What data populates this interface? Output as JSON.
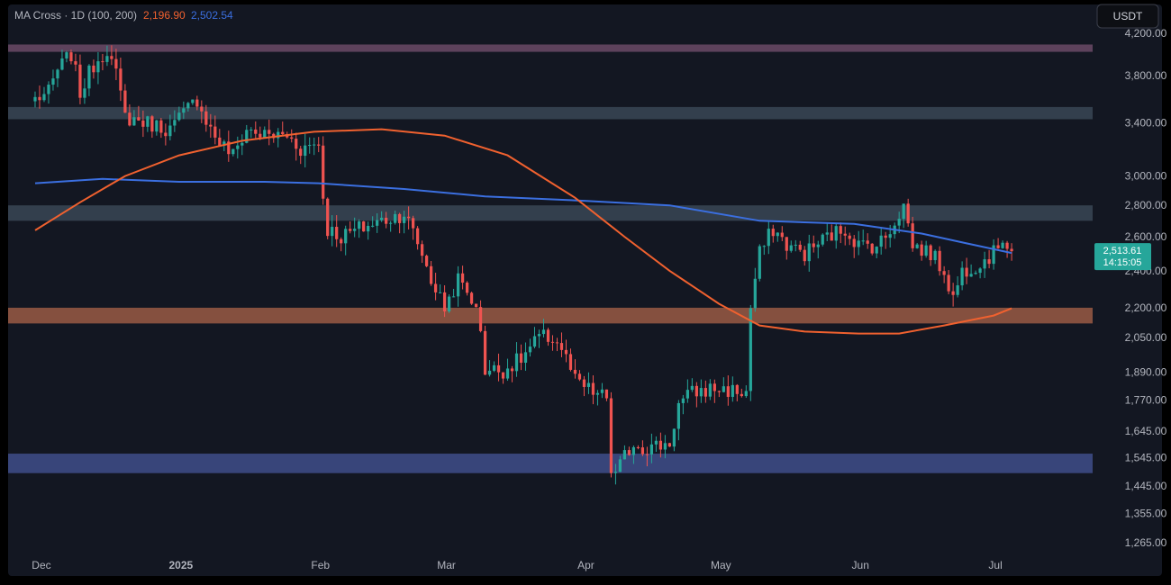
{
  "header": {
    "indicator_label": "MA Cross · 1D (100, 200)",
    "ma100_value": "2,196.90",
    "ma200_value": "2,502.54"
  },
  "currency_button": "USDT",
  "colors": {
    "background": "#131722",
    "frame": "#000000",
    "up": "#26a69a",
    "down": "#ef5350",
    "ma100": "#f0612f",
    "ma200": "#3b6fe0",
    "text": "#b2b5be"
  },
  "chart_data": {
    "type": "candlestick",
    "title": "",
    "xlabel": "",
    "ylabel": "",
    "y_scale": "log",
    "ylim": [
      1220,
      4400
    ],
    "y_ticks": [
      "4,200.00",
      "3,800.00",
      "3,400.00",
      "3,000.00",
      "2,800.00",
      "2,600.00",
      "2,400.00",
      "2,200.00",
      "2,050.00",
      "1,890.00",
      "1,770.00",
      "1,645.00",
      "1,545.00",
      "1,445.00",
      "1,355.00",
      "1,265.00"
    ],
    "x_ticks": [
      {
        "date": "2024-12-01",
        "label": "Dec"
      },
      {
        "date": "2025-01-01",
        "label": "2025"
      },
      {
        "date": "2025-02-01",
        "label": "Feb"
      },
      {
        "date": "2025-03-01",
        "label": "Mar"
      },
      {
        "date": "2025-04-01",
        "label": "Apr"
      },
      {
        "date": "2025-05-01",
        "label": "May"
      },
      {
        "date": "2025-06-01",
        "label": "Jun"
      },
      {
        "date": "2025-07-01",
        "label": "Jul"
      }
    ],
    "last_price": {
      "value": 2513.61,
      "label": "2,513.61",
      "countdown": "14:15:05"
    },
    "zones": [
      {
        "y1": 4020,
        "y2": 4090,
        "color": "#6b4a66"
      },
      {
        "y1": 3430,
        "y2": 3530,
        "color": "#3a4755"
      },
      {
        "y1": 2700,
        "y2": 2800,
        "color": "#3a4755"
      },
      {
        "y1": 2120,
        "y2": 2200,
        "color": "#9a5b44"
      },
      {
        "y1": 1490,
        "y2": 1560,
        "color": "#3f4d8a"
      }
    ],
    "anchors": [
      [
        "2024-11-30",
        3600
      ],
      [
        "2024-12-03",
        3650
      ],
      [
        "2024-12-05",
        3850
      ],
      [
        "2024-12-08",
        4000
      ],
      [
        "2024-12-10",
        3650
      ],
      [
        "2024-12-13",
        3900
      ],
      [
        "2024-12-16",
        4050
      ],
      [
        "2024-12-18",
        3800
      ],
      [
        "2024-12-20",
        3450
      ],
      [
        "2024-12-25",
        3400
      ],
      [
        "2024-12-30",
        3350
      ],
      [
        "2025-01-05",
        3600
      ],
      [
        "2025-01-08",
        3350
      ],
      [
        "2025-01-10",
        3250
      ],
      [
        "2025-01-13",
        3150
      ],
      [
        "2025-01-16",
        3350
      ],
      [
        "2025-01-20",
        3300
      ],
      [
        "2025-01-25",
        3300
      ],
      [
        "2025-01-28",
        3200
      ],
      [
        "2025-02-01",
        3250
      ],
      [
        "2025-02-02",
        2850
      ],
      [
        "2025-02-03",
        2650
      ],
      [
        "2025-02-06",
        2600
      ],
      [
        "2025-02-10",
        2650
      ],
      [
        "2025-02-15",
        2700
      ],
      [
        "2025-02-20",
        2750
      ],
      [
        "2025-02-24",
        2500
      ],
      [
        "2025-02-26",
        2350
      ],
      [
        "2025-03-01",
        2200
      ],
      [
        "2025-03-04",
        2350
      ],
      [
        "2025-03-07",
        2250
      ],
      [
        "2025-03-09",
        2100
      ],
      [
        "2025-03-10",
        1900
      ],
      [
        "2025-03-14",
        1900
      ],
      [
        "2025-03-18",
        1950
      ],
      [
        "2025-03-22",
        2050
      ],
      [
        "2025-03-25",
        2050
      ],
      [
        "2025-03-27",
        2000
      ],
      [
        "2025-03-30",
        1850
      ],
      [
        "2025-04-03",
        1800
      ],
      [
        "2025-04-06",
        1780
      ],
      [
        "2025-04-07",
        1500
      ],
      [
        "2025-04-08",
        1480
      ],
      [
        "2025-04-10",
        1550
      ],
      [
        "2025-04-12",
        1600
      ],
      [
        "2025-04-15",
        1580
      ],
      [
        "2025-04-20",
        1600
      ],
      [
        "2025-04-22",
        1750
      ],
      [
        "2025-04-25",
        1800
      ],
      [
        "2025-04-30",
        1820
      ],
      [
        "2025-05-07",
        1800
      ],
      [
        "2025-05-08",
        2200
      ],
      [
        "2025-05-10",
        2500
      ],
      [
        "2025-05-13",
        2650
      ],
      [
        "2025-05-16",
        2550
      ],
      [
        "2025-05-20",
        2500
      ],
      [
        "2025-05-25",
        2600
      ],
      [
        "2025-05-29",
        2650
      ],
      [
        "2025-06-01",
        2550
      ],
      [
        "2025-06-05",
        2550
      ],
      [
        "2025-06-07",
        2600
      ],
      [
        "2025-06-10",
        2750
      ],
      [
        "2025-06-11",
        2800
      ],
      [
        "2025-06-13",
        2550
      ],
      [
        "2025-06-17",
        2500
      ],
      [
        "2025-06-20",
        2400
      ],
      [
        "2025-06-22",
        2250
      ],
      [
        "2025-06-24",
        2400
      ],
      [
        "2025-06-28",
        2450
      ],
      [
        "2025-07-01",
        2500
      ],
      [
        "2025-07-03",
        2600
      ],
      [
        "2025-07-05",
        2513.61
      ]
    ],
    "ma100_points": [
      [
        "2024-11-30",
        2640
      ],
      [
        "2024-12-10",
        2820
      ],
      [
        "2024-12-20",
        3000
      ],
      [
        "2025-01-01",
        3150
      ],
      [
        "2025-01-15",
        3260
      ],
      [
        "2025-01-31",
        3330
      ],
      [
        "2025-02-15",
        3350
      ],
      [
        "2025-03-01",
        3300
      ],
      [
        "2025-03-15",
        3150
      ],
      [
        "2025-03-30",
        2850
      ],
      [
        "2025-04-10",
        2600
      ],
      [
        "2025-04-20",
        2400
      ],
      [
        "2025-05-01",
        2220
      ],
      [
        "2025-05-10",
        2110
      ],
      [
        "2025-05-20",
        2080
      ],
      [
        "2025-06-01",
        2070
      ],
      [
        "2025-06-10",
        2070
      ],
      [
        "2025-06-20",
        2110
      ],
      [
        "2025-07-01",
        2160
      ],
      [
        "2025-07-05",
        2196.9
      ]
    ],
    "ma200_points": [
      [
        "2024-11-30",
        2950
      ],
      [
        "2024-12-15",
        2980
      ],
      [
        "2025-01-01",
        2960
      ],
      [
        "2025-01-20",
        2960
      ],
      [
        "2025-02-01",
        2950
      ],
      [
        "2025-02-20",
        2910
      ],
      [
        "2025-03-10",
        2860
      ],
      [
        "2025-04-01",
        2830
      ],
      [
        "2025-04-20",
        2800
      ],
      [
        "2025-05-10",
        2700
      ],
      [
        "2025-05-31",
        2680
      ],
      [
        "2025-06-15",
        2620
      ],
      [
        "2025-06-25",
        2560
      ],
      [
        "2025-07-05",
        2502.54
      ]
    ]
  }
}
